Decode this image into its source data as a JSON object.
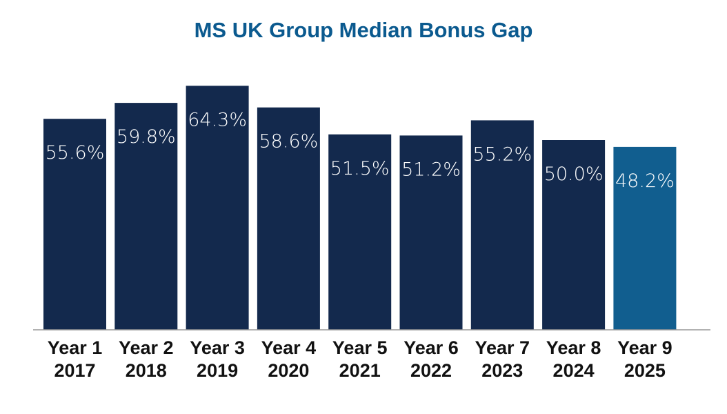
{
  "chart_data": {
    "type": "bar",
    "title": "MS UK Group Median Bonus Gap",
    "categories": [
      [
        "Year 1",
        "2017"
      ],
      [
        "Year 2",
        "2018"
      ],
      [
        "Year 3",
        "2019"
      ],
      [
        "Year 4",
        "2020"
      ],
      [
        "Year 5",
        "2021"
      ],
      [
        "Year 6",
        "2022"
      ],
      [
        "Year 7",
        "2023"
      ],
      [
        "Year 8",
        "2024"
      ],
      [
        "Year 9",
        "2025"
      ]
    ],
    "values": [
      55.6,
      59.8,
      64.3,
      58.6,
      51.5,
      51.2,
      55.2,
      50.0,
      48.2
    ],
    "data_labels": [
      "55.6%",
      "59.8%",
      "64.3%",
      "58.6%",
      "51.5%",
      "51.2%",
      "55.2%",
      "50.0%",
      "48.2%"
    ],
    "xlabel": "",
    "ylabel": "",
    "ylim": [
      0,
      70
    ],
    "grid": false,
    "colors": {
      "default": "#13294d",
      "highlight": "#115e8f",
      "title": "#0b5a8f",
      "axis": "#999999"
    },
    "highlight_index": 8
  }
}
